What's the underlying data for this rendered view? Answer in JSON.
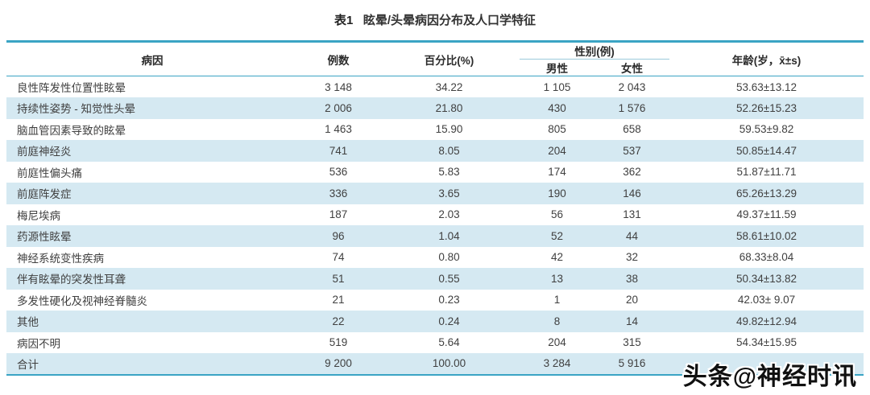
{
  "title": {
    "prefix": "表1",
    "text": "眩晕/头晕病因分布及人口学特征"
  },
  "colors": {
    "accent_teal": "#3ba4c4",
    "row_alt_blue": "#d5e9f2"
  },
  "table": {
    "headers": {
      "etiology": "病因",
      "cases": "例数",
      "percent": "百分比(%)",
      "gender_group": "性别(例)",
      "male": "男性",
      "female": "女性",
      "age": "年龄(岁，x̄±s)"
    },
    "rows": [
      {
        "etiology": "良性阵发性位置性眩晕",
        "cases": "3 148",
        "percent": "34.22",
        "male": "1 105",
        "female": "2 043",
        "age": "53.63±13.12"
      },
      {
        "etiology": "持续性姿势 - 知觉性头晕",
        "cases": "2 006",
        "percent": "21.80",
        "male": "430",
        "female": "1 576",
        "age": "52.26±15.23"
      },
      {
        "etiology": "脑血管因素导致的眩晕",
        "cases": "1 463",
        "percent": "15.90",
        "male": "805",
        "female": "658",
        "age": "59.53±9.82"
      },
      {
        "etiology": "前庭神经炎",
        "cases": "741",
        "percent": "8.05",
        "male": "204",
        "female": "537",
        "age": "50.85±14.47"
      },
      {
        "etiology": "前庭性偏头痛",
        "cases": "536",
        "percent": "5.83",
        "male": "174",
        "female": "362",
        "age": "51.87±11.71"
      },
      {
        "etiology": "前庭阵发症",
        "cases": "336",
        "percent": "3.65",
        "male": "190",
        "female": "146",
        "age": "65.26±13.29"
      },
      {
        "etiology": "梅尼埃病",
        "cases": "187",
        "percent": "2.03",
        "male": "56",
        "female": "131",
        "age": "49.37±11.59"
      },
      {
        "etiology": "药源性眩晕",
        "cases": "96",
        "percent": "1.04",
        "male": "52",
        "female": "44",
        "age": "58.61±10.02"
      },
      {
        "etiology": "神经系统变性疾病",
        "cases": "74",
        "percent": "0.80",
        "male": "42",
        "female": "32",
        "age": "68.33±8.04"
      },
      {
        "etiology": "伴有眩晕的突发性耳聋",
        "cases": "51",
        "percent": "0.55",
        "male": "13",
        "female": "38",
        "age": "50.34±13.82"
      },
      {
        "etiology": "多发性硬化及视神经脊髓炎",
        "cases": "21",
        "percent": "0.23",
        "male": "1",
        "female": "20",
        "age": "42.03± 9.07"
      },
      {
        "etiology": "其他",
        "cases": "22",
        "percent": "0.24",
        "male": "8",
        "female": "14",
        "age": "49.82±12.94"
      },
      {
        "etiology": "病因不明",
        "cases": "519",
        "percent": "5.64",
        "male": "204",
        "female": "315",
        "age": "54.34±15.95"
      },
      {
        "etiology": "合计",
        "cases": "9 200",
        "percent": "100.00",
        "male": "3 284",
        "female": "5 916",
        "age": ""
      }
    ]
  },
  "watermark": {
    "text": "头条@神经时讯"
  }
}
